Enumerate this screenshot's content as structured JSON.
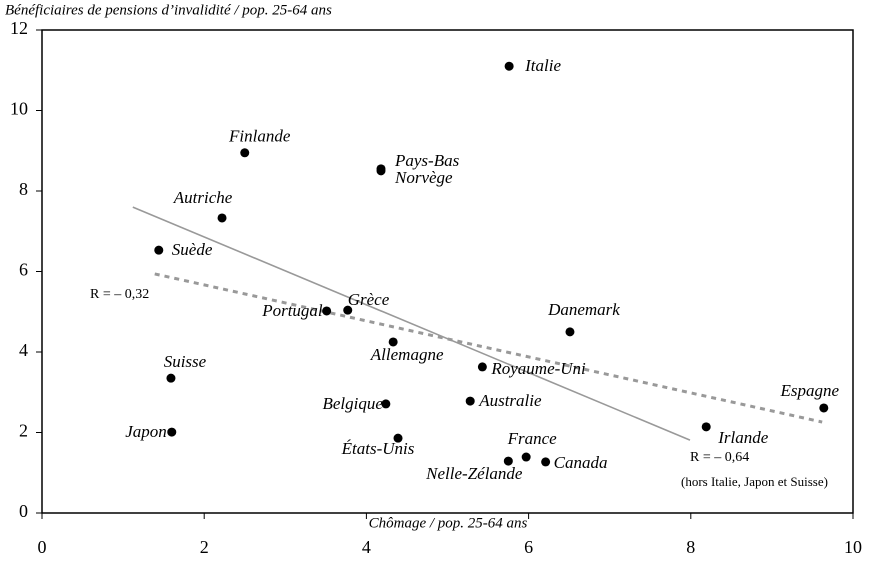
{
  "chart_data": {
    "type": "scatter",
    "ylabel": "Bénéficiaires de pensions d’invalidité / pop. 25-64 ans",
    "xlabel": "Chômage / pop. 25-64 ans",
    "xlim": [
      0,
      10
    ],
    "ylim": [
      0,
      12
    ],
    "xticks": [
      0,
      2,
      4,
      6,
      8,
      10
    ],
    "yticks": [
      0,
      2,
      4,
      6,
      8,
      10,
      12
    ],
    "color": "#000000",
    "labels": [
      "Italie",
      "Finlande",
      "Pays-Bas",
      "Norvège",
      "Autriche",
      "Suède",
      "Portugal",
      "Grèce",
      "Danemark",
      "Allemagne",
      "Royaume-Uni",
      "Suisse",
      "Espagne",
      "Belgique",
      "Australie",
      "Irlande",
      "Japon",
      "États-Unis",
      "France",
      "Nelle-Zélande",
      "Canada"
    ],
    "x": [
      5.76,
      2.5,
      4.18,
      4.18,
      2.22,
      1.44,
      3.51,
      3.77,
      6.51,
      4.33,
      5.43,
      1.59,
      9.64,
      4.24,
      5.28,
      8.19,
      1.6,
      4.39,
      5.97,
      5.75,
      6.21
    ],
    "y": [
      11.1,
      8.95,
      8.55,
      8.5,
      7.33,
      6.53,
      5.02,
      5.04,
      4.5,
      4.25,
      3.63,
      3.35,
      2.61,
      2.71,
      2.78,
      2.14,
      2.01,
      1.86,
      1.39,
      1.29,
      1.27
    ],
    "trend_lines": [
      {
        "name": "R = – 0,64",
        "note": "(hors Italie, Japon et Suisse)",
        "color": "#999999",
        "dashed": false,
        "x": [
          1.12,
          7.99
        ],
        "y": [
          7.6,
          1.81
        ]
      },
      {
        "name": "R = – 0,32",
        "color": "#999999",
        "dashed": true,
        "x": [
          1.39,
          9.62
        ],
        "y": [
          5.94,
          2.26
        ]
      }
    ]
  }
}
